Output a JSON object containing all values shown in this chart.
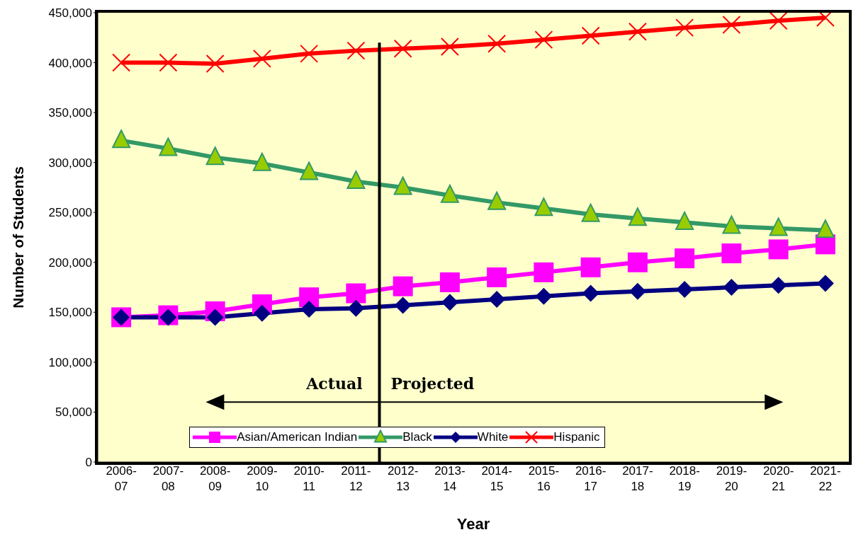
{
  "chart_data": {
    "type": "line",
    "xlabel": "Year",
    "ylabel": "Number of Students",
    "categories": [
      "2006-07",
      "2007-08",
      "2008-09",
      "2009-10",
      "2010-11",
      "2011-12",
      "2012-13",
      "2013-14",
      "2014-15",
      "2015-16",
      "2016-17",
      "2017-18",
      "2018-19",
      "2019-20",
      "2020-21",
      "2021-22"
    ],
    "series": [
      {
        "name": "Asian/American Indian",
        "color": "#ff00ff",
        "marker": "square",
        "values": [
          145000,
          147000,
          151000,
          158000,
          165000,
          169000,
          176000,
          180000,
          185000,
          190000,
          195000,
          200000,
          204000,
          209000,
          213000,
          218000
        ]
      },
      {
        "name": "Black",
        "color": "#339966",
        "marker": "triangle",
        "values": [
          322000,
          314000,
          305000,
          299000,
          290000,
          281000,
          275000,
          267000,
          260000,
          254000,
          248000,
          244000,
          240000,
          236000,
          234000,
          232000
        ]
      },
      {
        "name": "White",
        "color": "#000080",
        "marker": "diamond",
        "values": [
          145000,
          145000,
          145000,
          149000,
          153000,
          154000,
          157000,
          160000,
          163000,
          166000,
          169000,
          171000,
          173000,
          175000,
          177000,
          179000
        ]
      },
      {
        "name": "Hispanic",
        "color": "#ff0000",
        "marker": "cross",
        "values": [
          400000,
          400000,
          399000,
          404000,
          409000,
          412000,
          414000,
          416000,
          419000,
          423000,
          427000,
          431000,
          435000,
          438000,
          442000,
          445000
        ]
      }
    ],
    "ylim": [
      0,
      450000
    ],
    "yticks": [
      0,
      {
        "value": 50000,
        "label": "50,000"
      },
      {
        "value": 100000,
        "label": "100,000"
      },
      {
        "value": 150000,
        "label": "150,000"
      },
      {
        "value": 200000,
        "label": "200,000"
      },
      {
        "value": 250000,
        "label": "250,000"
      },
      {
        "value": 300000,
        "label": "300,000"
      },
      {
        "value": 350000,
        "label": "350,000"
      },
      {
        "value": 400000,
        "label": "400,000"
      },
      {
        "value": 450000,
        "label": "450,000"
      }
    ],
    "grid": false,
    "legend": "bottom",
    "line_style": "solid",
    "annotations": [
      "Actual",
      "Projected"
    ]
  }
}
